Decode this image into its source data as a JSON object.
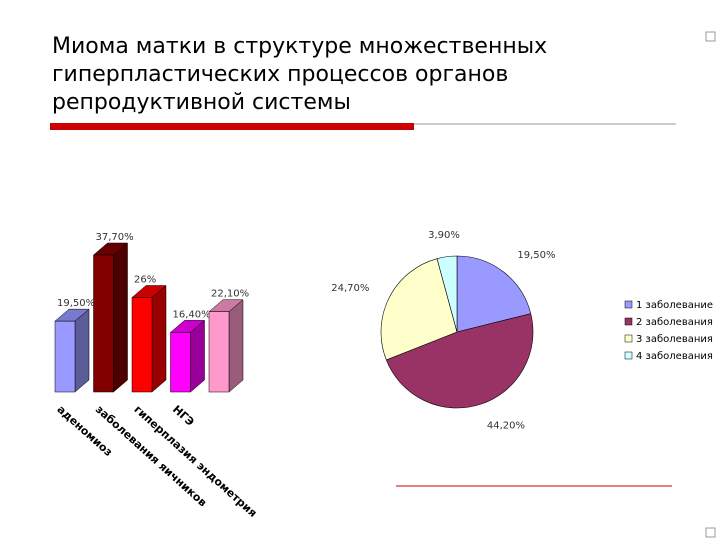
{
  "title_lines": [
    "Миома матки в структуре множественных",
    "гиперпластических процессов органов",
    "репродуктивной системы"
  ],
  "chart_data": [
    {
      "type": "bar3d",
      "categories": [
        null,
        "аденомиоз",
        "заболевания яичников",
        "гиперплазия эндометрия",
        "НГЭ"
      ],
      "values": [
        19.5,
        37.7,
        26,
        16.4,
        22.1
      ],
      "value_labels": [
        "19,50%",
        "37,70%",
        "26%",
        "16,40%",
        "22,10%"
      ],
      "colors": [
        "#9999ff",
        "#800000",
        "#ff0000",
        "#ff00ff",
        "#ff99cc"
      ]
    },
    {
      "type": "pie",
      "categories": [
        "1 заболевание",
        "2 заболевания",
        "3 заболевания",
        "4 заболевания"
      ],
      "values": [
        19.5,
        44.2,
        24.7,
        3.9
      ],
      "value_labels": [
        "19,50%",
        "44,20%",
        "24,70%",
        "3,90%"
      ],
      "colors": [
        "#9999ff",
        "#993366",
        "#ffffcc",
        "#ccffff"
      ]
    }
  ]
}
